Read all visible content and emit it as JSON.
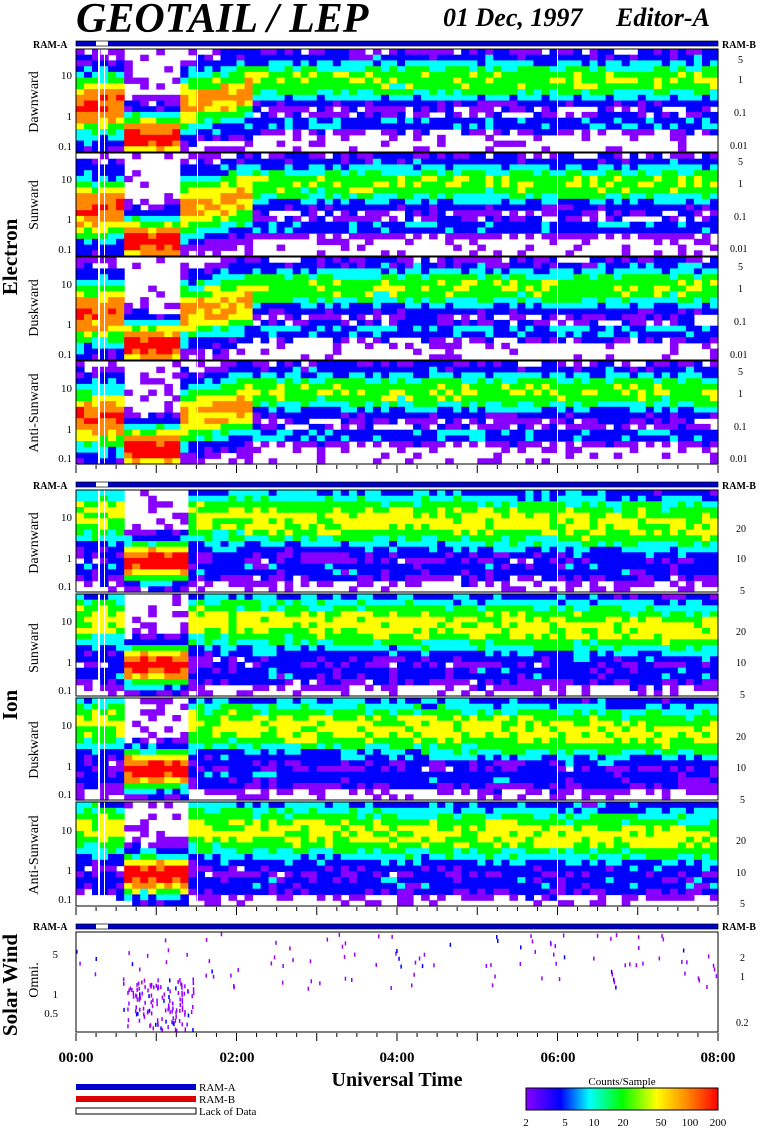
{
  "header": {
    "title": "GEOTAIL / LEP",
    "date": "01 Dec, 1997",
    "editor": "Editor-A"
  },
  "chart_data": {
    "type": "heatmap",
    "xlabel": "Universal Time",
    "x_ticks": [
      "00:00",
      "02:00",
      "04:00",
      "06:00",
      "08:00"
    ],
    "xlim": [
      "00:00",
      "08:00"
    ],
    "ram_labels": {
      "left": "RAM-A",
      "right": "RAM-B"
    },
    "groups": [
      {
        "name": "Electron",
        "left_ticks": [
          "10",
          "1",
          "0.1"
        ],
        "right_ticks": [
          "5",
          "1",
          "0.1",
          "0.01"
        ],
        "panels": [
          "Dawnward",
          "Sunward",
          "Duskward",
          "Anti-Sunward"
        ]
      },
      {
        "name": "Ion",
        "left_ticks": [
          "10",
          "1",
          "0.1"
        ],
        "right_ticks": [
          "20",
          "10",
          "5"
        ],
        "panels": [
          "Dawnward",
          "Sunward",
          "Duskward",
          "Anti-Sunward"
        ]
      },
      {
        "name": "Solar Wind",
        "left_ticks": [
          "5",
          "1",
          "0.5"
        ],
        "right_ticks": [
          "2",
          "1",
          "0.2"
        ],
        "panels": [
          "Omni."
        ]
      }
    ],
    "legend": {
      "items": [
        "RAM-A",
        "RAM-B",
        "Lack of Data"
      ],
      "colors": [
        "#0000cc",
        "#dd0000",
        "#ffffff"
      ]
    },
    "colorbar": {
      "title": "Counts/Sample",
      "ticks": [
        "2",
        "5",
        "10",
        "20",
        "50",
        "100",
        "200"
      ],
      "colors": [
        "#8800ff",
        "#0000ff",
        "#00ffff",
        "#00ff00",
        "#ffff00",
        "#ff8800",
        "#ff0000"
      ]
    }
  }
}
